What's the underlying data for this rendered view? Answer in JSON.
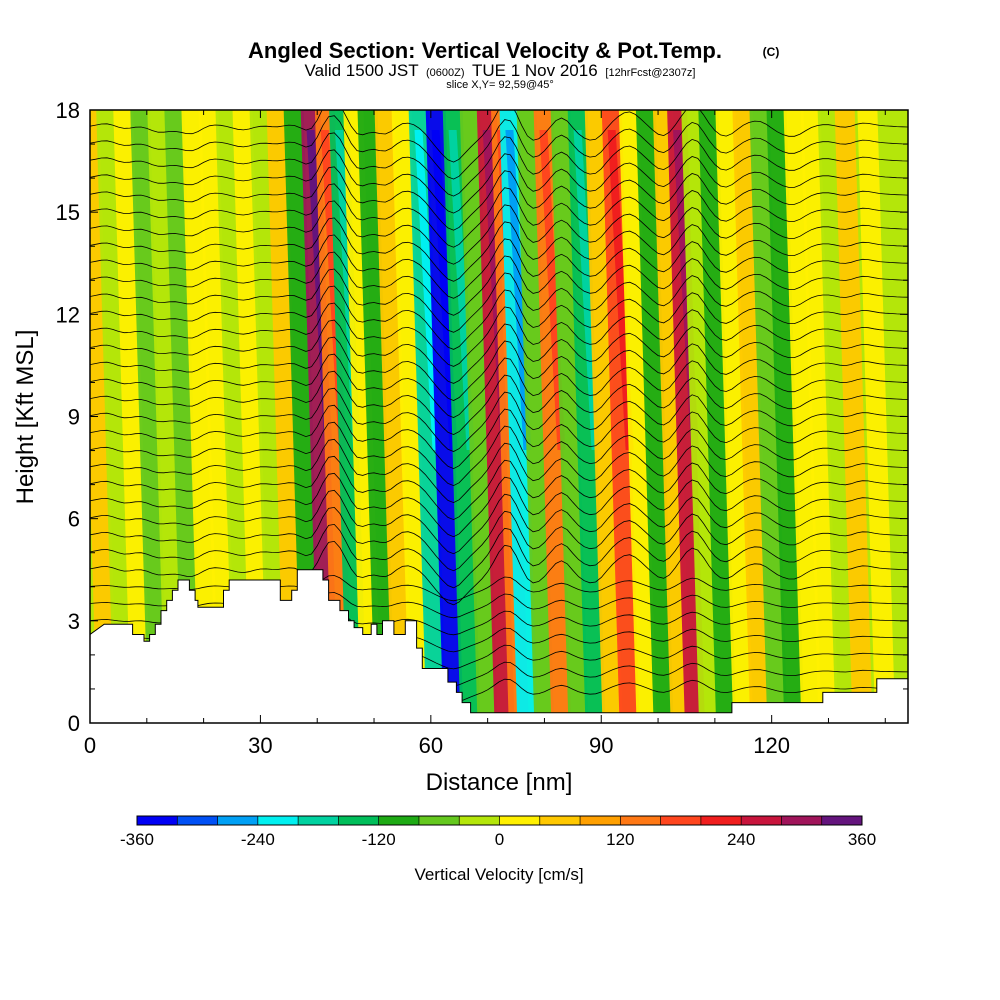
{
  "header": {
    "title": "Angled Section: Vertical Velocity & Pot.Temp.",
    "title_copyright": "(C)",
    "subtitle_pre": "Valid 1500 JST",
    "subtitle_utc": "(0600Z)",
    "subtitle_date": "TUE 1 Nov 2016",
    "subtitle_fcst": "[12hrFcst@2307z]",
    "slice_info": "slice X,Y= 92,59@45°"
  },
  "chart_data": {
    "type": "heatmap",
    "xlabel": "Distance [nm]",
    "ylabel": "Height [Kft MSL]",
    "xlim": [
      0,
      144
    ],
    "ylim": [
      0,
      18
    ],
    "x_ticks": [
      0,
      30,
      60,
      90,
      120
    ],
    "y_ticks": [
      0,
      3,
      6,
      9,
      12,
      15,
      18
    ],
    "grid": false,
    "field": "Vertical Velocity",
    "units": "cm/s",
    "colorbar": {
      "title": "Vertical Velocity [cm/s]",
      "min": -360,
      "max": 360,
      "step": 40,
      "tick_values": [
        -360,
        -240,
        -120,
        0,
        120,
        240,
        360
      ],
      "colors": [
        "#0000f5",
        "#0050f5",
        "#00a0f5",
        "#00f0f0",
        "#00d2a0",
        "#00be5a",
        "#1eaa14",
        "#64c81e",
        "#b4e60a",
        "#fff000",
        "#ffc800",
        "#ffa000",
        "#ff7814",
        "#ff461e",
        "#f01e1e",
        "#c8143c",
        "#a0145a",
        "#64147d"
      ]
    },
    "bands": [
      {
        "x": 3,
        "w": 45
      },
      {
        "x": 6,
        "w": -30
      },
      {
        "x": 9,
        "w": 20
      },
      {
        "x": 12,
        "w": -60
      },
      {
        "x": 15,
        "w": -20
      },
      {
        "x": 18,
        "w": -80
      },
      {
        "x": 21,
        "w": 30
      },
      {
        "x": 24,
        "w": 10
      },
      {
        "x": 27,
        "w": -40
      },
      {
        "x": 30,
        "w": 20
      },
      {
        "x": 33,
        "w": -10
      },
      {
        "x": 36,
        "w": 40
      },
      {
        "x": 39,
        "w": -90
      },
      {
        "x": 42,
        "w": 290
      },
      {
        "x": 44.5,
        "w": 150
      },
      {
        "x": 47,
        "w": -140
      },
      {
        "x": 49.5,
        "w": 20
      },
      {
        "x": 52,
        "w": -100
      },
      {
        "x": 55,
        "w": 60
      },
      {
        "x": 58,
        "w": 10
      },
      {
        "x": 61,
        "w": -170
      },
      {
        "x": 64,
        "w": -340
      },
      {
        "x": 67,
        "w": -150
      },
      {
        "x": 70,
        "w": -50
      },
      {
        "x": 73,
        "w": 260
      },
      {
        "x": 75.5,
        "w": 150
      },
      {
        "x": 77,
        "w": -210
      },
      {
        "x": 80,
        "w": -70
      },
      {
        "x": 83,
        "w": 140
      },
      {
        "x": 86,
        "w": -80
      },
      {
        "x": 89,
        "w": -140
      },
      {
        "x": 92,
        "w": 60
      },
      {
        "x": 95,
        "w": 160
      },
      {
        "x": 98,
        "w": 20
      },
      {
        "x": 101,
        "w": -120
      },
      {
        "x": 104,
        "w": 60
      },
      {
        "x": 106.5,
        "w": 240
      },
      {
        "x": 109,
        "w": -20
      },
      {
        "x": 112,
        "w": -110
      },
      {
        "x": 115,
        "w": 30
      },
      {
        "x": 118,
        "w": 70
      },
      {
        "x": 121,
        "w": -50
      },
      {
        "x": 124,
        "w": -100
      },
      {
        "x": 127,
        "w": 10
      },
      {
        "x": 130,
        "w": 30
      },
      {
        "x": 133,
        "w": -20
      },
      {
        "x": 136,
        "w": 50
      },
      {
        "x": 140,
        "w": 10
      }
    ],
    "terrain": [
      [
        0,
        2.6
      ],
      [
        2.5,
        2.9
      ],
      [
        7.5,
        2.9
      ],
      [
        7.5,
        2.6
      ],
      [
        9.5,
        2.6
      ],
      [
        9.5,
        2.4
      ],
      [
        10.5,
        2.4
      ],
      [
        10.5,
        2.6
      ],
      [
        11.5,
        2.6
      ],
      [
        11.5,
        2.9
      ],
      [
        12.5,
        2.9
      ],
      [
        12.5,
        3.3
      ],
      [
        13.5,
        3.3
      ],
      [
        13.5,
        3.6
      ],
      [
        14.5,
        3.6
      ],
      [
        14.5,
        3.9
      ],
      [
        15.5,
        3.9
      ],
      [
        15.5,
        4.2
      ],
      [
        17.5,
        4.2
      ],
      [
        17.5,
        3.9
      ],
      [
        18.5,
        3.9
      ],
      [
        18.5,
        3.6
      ],
      [
        19,
        3.6
      ],
      [
        19,
        3.4
      ],
      [
        23.5,
        3.4
      ],
      [
        23.5,
        3.9
      ],
      [
        24.5,
        3.9
      ],
      [
        24.5,
        4.2
      ],
      [
        33.5,
        4.2
      ],
      [
        33.5,
        3.6
      ],
      [
        35.5,
        3.6
      ],
      [
        35.5,
        3.9
      ],
      [
        36.5,
        3.9
      ],
      [
        36.5,
        4.5
      ],
      [
        41,
        4.5
      ],
      [
        41,
        4.2
      ],
      [
        42,
        4.2
      ],
      [
        42,
        3.6
      ],
      [
        44,
        3.6
      ],
      [
        44,
        3.3
      ],
      [
        45.5,
        3.3
      ],
      [
        45.5,
        3.0
      ],
      [
        46.5,
        3.0
      ],
      [
        46.5,
        2.8
      ],
      [
        48,
        2.8
      ],
      [
        48,
        2.6
      ],
      [
        49.5,
        2.6
      ],
      [
        49.5,
        2.9
      ],
      [
        50.5,
        2.9
      ],
      [
        50.5,
        2.6
      ],
      [
        51.5,
        2.6
      ],
      [
        51.5,
        3.0
      ],
      [
        53.5,
        3.0
      ],
      [
        53.5,
        2.6
      ],
      [
        55.5,
        2.6
      ],
      [
        55.5,
        3.0
      ],
      [
        57.5,
        3.0
      ],
      [
        57.5,
        2.2
      ],
      [
        58.5,
        2.2
      ],
      [
        58.5,
        1.6
      ],
      [
        63,
        1.6
      ],
      [
        63,
        1.2
      ],
      [
        64.5,
        1.2
      ],
      [
        64.5,
        0.9
      ],
      [
        65.5,
        0.9
      ],
      [
        65.5,
        0.6
      ],
      [
        67,
        0.6
      ],
      [
        67,
        0.3
      ],
      [
        113,
        0.3
      ],
      [
        113,
        0.6
      ],
      [
        129,
        0.6
      ],
      [
        129,
        0.9
      ],
      [
        138.5,
        0.9
      ],
      [
        138.5,
        1.3
      ],
      [
        144,
        1.3
      ]
    ]
  }
}
